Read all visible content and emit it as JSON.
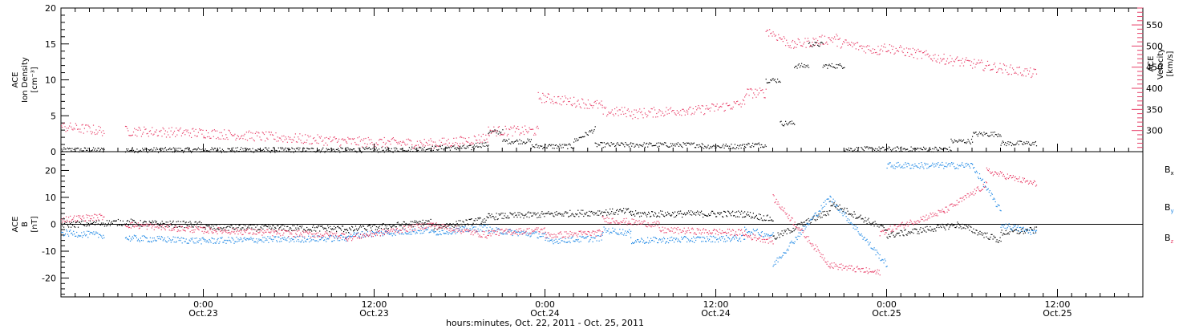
{
  "chart_data": [
    {
      "type": "scatter",
      "panel": "plasma",
      "ylabel": [
        "ACE",
        "Ion Density",
        "[cm⁻³]"
      ],
      "y2label": [
        "ACE",
        "Velocity",
        "[km/s]"
      ],
      "ylim": [
        0,
        20
      ],
      "y2lim": [
        250,
        590
      ],
      "yticks": [
        0,
        5,
        10,
        15,
        20
      ],
      "y2ticks": [
        300,
        350,
        400,
        450,
        500,
        550
      ],
      "right_axis_color": "#e8416a",
      "series": [
        {
          "name": "",
          "axis": "left",
          "color": "#000000",
          "segments": [
            {
              "x": [
                -10,
                -7
              ],
              "y": [
                0.3,
                0.3
              ]
            },
            {
              "x": [
                -5.5,
                10
              ],
              "y": [
                0.3,
                0.3
              ]
            },
            {
              "x": [
                10,
                13
              ],
              "y": [
                0.3,
                0.3
              ]
            },
            {
              "x": [
                13,
                17
              ],
              "y": [
                0.3,
                0.6
              ]
            },
            {
              "x": [
                17,
                19
              ],
              "y": [
                0.6,
                0.6
              ]
            },
            {
              "x": [
                19,
                20
              ],
              "y": [
                1,
                1
              ]
            },
            {
              "x": [
                20,
                21
              ],
              "y": [
                2.8,
                2.8
              ]
            },
            {
              "x": [
                21,
                23
              ],
              "y": [
                1.5,
                1.5
              ]
            },
            {
              "x": [
                23,
                26
              ],
              "y": [
                0.8,
                0.8
              ]
            },
            {
              "x": [
                26,
                27.5
              ],
              "y": [
                1.5,
                3.2
              ]
            },
            {
              "x": [
                27.5,
                30
              ],
              "y": [
                1,
                1
              ]
            },
            {
              "x": [
                30,
                35
              ],
              "y": [
                1,
                1
              ]
            },
            {
              "x": [
                35,
                38
              ],
              "y": [
                0.8,
                0.8
              ]
            },
            {
              "x": [
                38,
                39.5
              ],
              "y": [
                1,
                1
              ]
            },
            {
              "x": [
                39.5,
                40.5
              ],
              "y": [
                10,
                10
              ]
            },
            {
              "x": [
                40.5,
                41.5
              ],
              "y": [
                4,
                4
              ]
            },
            {
              "x": [
                41.5,
                42.5
              ],
              "y": [
                12,
                12
              ]
            },
            {
              "x": [
                42.5,
                43.5
              ],
              "y": [
                15,
                15
              ]
            },
            {
              "x": [
                43.5,
                45
              ],
              "y": [
                12,
                12
              ]
            },
            {
              "x": [
                45,
                47.5
              ],
              "y": [
                0.4,
                0.4
              ]
            },
            {
              "x": [
                47.5,
                52.5
              ],
              "y": [
                0.4,
                0.4
              ]
            },
            {
              "x": [
                52.5,
                54
              ],
              "y": [
                1.5,
                1.5
              ]
            },
            {
              "x": [
                54,
                56
              ],
              "y": [
                2.5,
                2.5
              ]
            },
            {
              "x": [
                56,
                58.5
              ],
              "y": [
                1.2,
                1.2
              ]
            }
          ]
        },
        {
          "name": "",
          "axis": "right",
          "color": "#e8416a",
          "segments": [
            {
              "x": [
                -10,
                -7
              ],
              "y": [
                310,
                300
              ]
            },
            {
              "x": [
                -5.5,
                0
              ],
              "y": [
                300,
                295
              ]
            },
            {
              "x": [
                0,
                10
              ],
              "y": [
                295,
                275
              ]
            },
            {
              "x": [
                10,
                16
              ],
              "y": [
                275,
                270
              ]
            },
            {
              "x": [
                16,
                18
              ],
              "y": [
                270,
                275
              ]
            },
            {
              "x": [
                18,
                20
              ],
              "y": [
                275,
                285
              ]
            },
            {
              "x": [
                20,
                23.5
              ],
              "y": [
                300,
                300
              ]
            },
            {
              "x": [
                23.5,
                28
              ],
              "y": [
                380,
                360
              ]
            },
            {
              "x": [
                28,
                30
              ],
              "y": [
                345,
                345
              ]
            },
            {
              "x": [
                30,
                34
              ],
              "y": [
                340,
                350
              ]
            },
            {
              "x": [
                34,
                38
              ],
              "y": [
                345,
                365
              ]
            },
            {
              "x": [
                38,
                39.5
              ],
              "y": [
                390,
                390
              ]
            },
            {
              "x": [
                39.5,
                41.5
              ],
              "y": [
                540,
                500
              ]
            },
            {
              "x": [
                41.5,
                44.5
              ],
              "y": [
                505,
                520
              ]
            },
            {
              "x": [
                44.5,
                47.5
              ],
              "y": [
                510,
                490
              ]
            },
            {
              "x": [
                47.5,
                52
              ],
              "y": [
                500,
                470
              ]
            },
            {
              "x": [
                52,
                58.5
              ],
              "y": [
                470,
                435
              ]
            }
          ]
        }
      ]
    },
    {
      "type": "scatter",
      "panel": "magnetic field",
      "ylabel": [
        "ACE",
        "B",
        "[nT]"
      ],
      "ylim": [
        -27,
        27
      ],
      "yticks": [
        -20,
        -10,
        0,
        10,
        20
      ],
      "zero_line": true,
      "series": [
        {
          "name": "Bx",
          "label_main": "B",
          "label_sub": "x",
          "color": "#000000",
          "segments": [
            {
              "x": [
                -10,
                -5
              ],
              "y": [
                0,
                1
              ]
            },
            {
              "x": [
                -5,
                0
              ],
              "y": [
                0.5,
                0
              ]
            },
            {
              "x": [
                0,
                10
              ],
              "y": [
                -1,
                -1.5
              ]
            },
            {
              "x": [
                10,
                16
              ],
              "y": [
                -2,
                1
              ]
            },
            {
              "x": [
                16,
                20
              ],
              "y": [
                -1,
                2
              ]
            },
            {
              "x": [
                20,
                30
              ],
              "y": [
                3,
                5
              ]
            },
            {
              "x": [
                30,
                38
              ],
              "y": [
                4,
                4
              ]
            },
            {
              "x": [
                38,
                40
              ],
              "y": [
                4,
                2
              ]
            },
            {
              "x": [
                40,
                44
              ],
              "y": [
                -5,
                5
              ]
            },
            {
              "x": [
                44,
                48
              ],
              "y": [
                8,
                -2
              ]
            },
            {
              "x": [
                48,
                53
              ],
              "y": [
                -4,
                0
              ]
            },
            {
              "x": [
                53,
                56
              ],
              "y": [
                0,
                -6
              ]
            },
            {
              "x": [
                56,
                58.5
              ],
              "y": [
                -3,
                -2
              ]
            }
          ]
        },
        {
          "name": "By",
          "label_main": "B",
          "label_sub": "y",
          "color": "#1e88e5",
          "segments": [
            {
              "x": [
                -10,
                -7
              ],
              "y": [
                -3,
                -4
              ]
            },
            {
              "x": [
                -5.5,
                0
              ],
              "y": [
                -5,
                -6
              ]
            },
            {
              "x": [
                0,
                10
              ],
              "y": [
                -6,
                -5
              ]
            },
            {
              "x": [
                10,
                16
              ],
              "y": [
                -4,
                -2
              ]
            },
            {
              "x": [
                16,
                20
              ],
              "y": [
                -3,
                -1
              ]
            },
            {
              "x": [
                20,
                24
              ],
              "y": [
                -2,
                -4
              ]
            },
            {
              "x": [
                24,
                28
              ],
              "y": [
                -6,
                -5
              ]
            },
            {
              "x": [
                28,
                30
              ],
              "y": [
                -2,
                -3
              ]
            },
            {
              "x": [
                30,
                38
              ],
              "y": [
                -6,
                -5
              ]
            },
            {
              "x": [
                38,
                40
              ],
              "y": [
                -2,
                -4
              ]
            },
            {
              "x": [
                40,
                44
              ],
              "y": [
                -15,
                10
              ]
            },
            {
              "x": [
                44,
                48
              ],
              "y": [
                10,
                -15
              ]
            },
            {
              "x": [
                48,
                54
              ],
              "y": [
                22,
                22
              ]
            },
            {
              "x": [
                54,
                56
              ],
              "y": [
                22,
                5
              ]
            },
            {
              "x": [
                56,
                58.5
              ],
              "y": [
                0,
                -3
              ]
            }
          ]
        },
        {
          "name": "Bz",
          "label_main": "B",
          "label_sub": "z",
          "color": "#e8416a",
          "segments": [
            {
              "x": [
                -10,
                -7
              ],
              "y": [
                2,
                3
              ]
            },
            {
              "x": [
                -5.5,
                0
              ],
              "y": [
                0,
                -2
              ]
            },
            {
              "x": [
                0,
                10
              ],
              "y": [
                -2,
                -4
              ]
            },
            {
              "x": [
                10,
                16
              ],
              "y": [
                -5,
                0
              ]
            },
            {
              "x": [
                16,
                20
              ],
              "y": [
                0,
                -4
              ]
            },
            {
              "x": [
                20,
                24
              ],
              "y": [
                -3,
                -2
              ]
            },
            {
              "x": [
                24,
                28
              ],
              "y": [
                -4,
                -3
              ]
            },
            {
              "x": [
                28,
                32
              ],
              "y": [
                2,
                0
              ]
            },
            {
              "x": [
                32,
                38
              ],
              "y": [
                -2,
                -3
              ]
            },
            {
              "x": [
                38,
                40
              ],
              "y": [
                -4,
                -6
              ]
            },
            {
              "x": [
                40,
                44
              ],
              "y": [
                10,
                -15
              ]
            },
            {
              "x": [
                44,
                47.5
              ],
              "y": [
                -15,
                -18
              ]
            },
            {
              "x": [
                47.5,
                52
              ],
              "y": [
                -3,
                5
              ]
            },
            {
              "x": [
                52,
                55
              ],
              "y": [
                5,
                15
              ]
            },
            {
              "x": [
                55,
                58.5
              ],
              "y": [
                20,
                15
              ]
            }
          ]
        }
      ]
    }
  ],
  "x_axis": {
    "xlim": [
      -10,
      66
    ],
    "major_ticks": [
      0,
      12,
      24,
      36,
      48,
      60
    ],
    "labels": [
      {
        "x": 0,
        "time": "0:00",
        "date": "Oct.23"
      },
      {
        "x": 12,
        "time": "12:00",
        "date": "Oct.23"
      },
      {
        "x": 24,
        "time": "0:00",
        "date": "Oct.24"
      },
      {
        "x": 36,
        "time": "12:00",
        "date": "Oct.24"
      },
      {
        "x": 48,
        "time": "0:00",
        "date": "Oct.25"
      },
      {
        "x": 60,
        "time": "12:00",
        "date": "Oct.25"
      }
    ],
    "xlabel": "hours:minutes, Oct. 22, 2011 - Oct. 25, 2011"
  }
}
